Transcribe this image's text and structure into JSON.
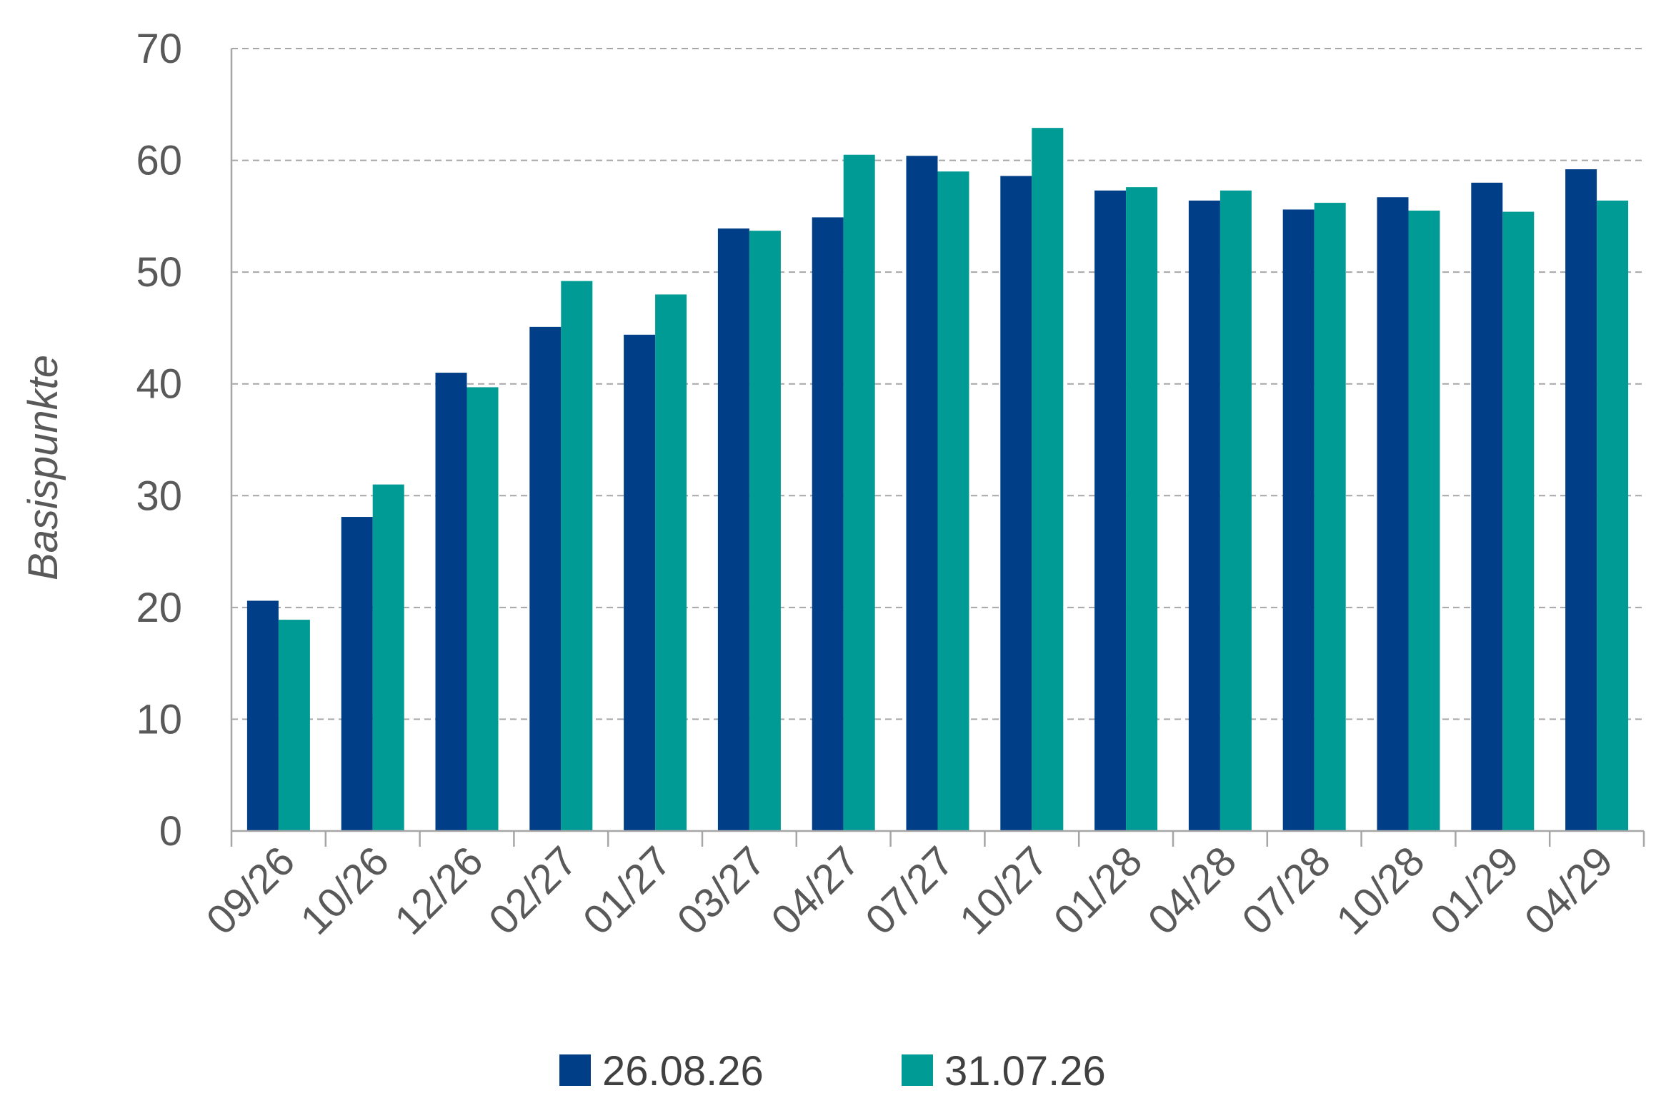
{
  "chart_data": {
    "type": "bar",
    "title": "",
    "xlabel": "",
    "ylabel": "Basispunkte",
    "ylim": [
      0,
      70
    ],
    "yticks": [
      0,
      10,
      20,
      30,
      40,
      50,
      60,
      70
    ],
    "grid": "horizontal-dashed",
    "legend_position": "bottom",
    "categories": [
      "09/26",
      "10/26",
      "12/26",
      "02/27",
      "01/27",
      "03/27",
      "04/27",
      "07/27",
      "10/27",
      "01/28",
      "04/28",
      "07/28",
      "10/28",
      "01/29",
      "04/29"
    ],
    "series": [
      {
        "name": "26.08.26",
        "color": "#003F87",
        "values": [
          20.6,
          28.1,
          41.0,
          45.1,
          44.4,
          53.9,
          54.9,
          60.4,
          58.6,
          57.3,
          56.4,
          55.6,
          56.7,
          58.0,
          59.2
        ]
      },
      {
        "name": "31.07.26",
        "color": "#009B94",
        "values": [
          18.9,
          31.0,
          39.7,
          49.2,
          48.0,
          53.7,
          60.5,
          59.0,
          62.9,
          57.6,
          57.3,
          56.2,
          55.5,
          55.4,
          56.4
        ]
      }
    ]
  }
}
